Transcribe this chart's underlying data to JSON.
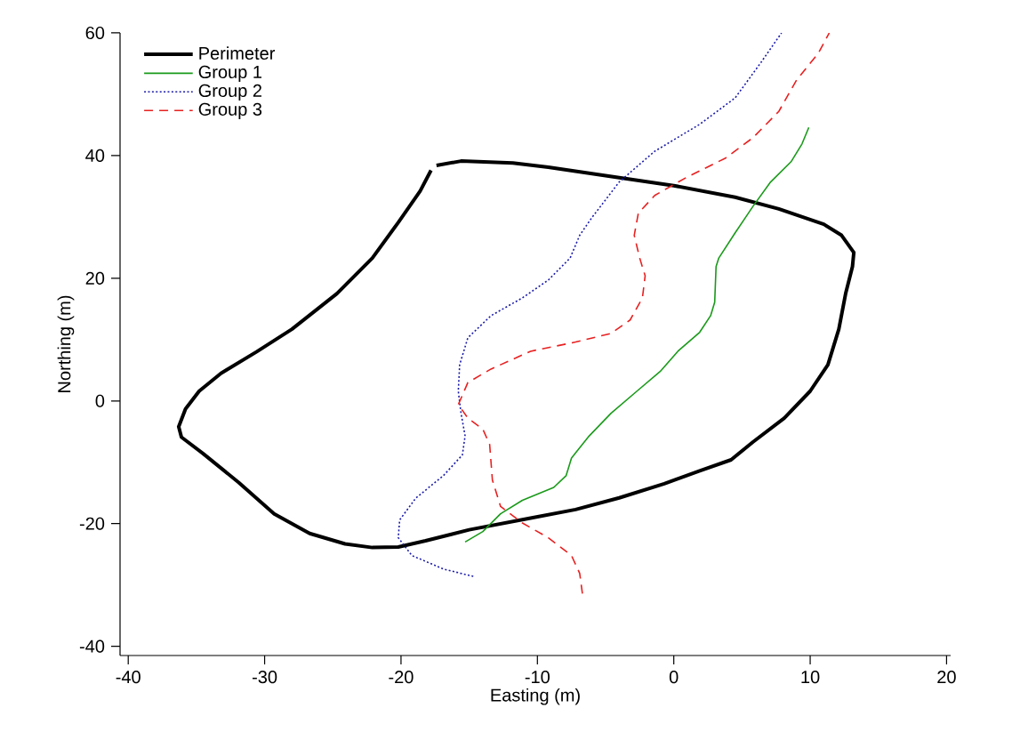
{
  "chart_data": {
    "type": "line",
    "xlabel": "Easting (m)",
    "ylabel": "Northing (m)",
    "xlim": [
      -40.6,
      20.3
    ],
    "ylim": [
      -41.5,
      60
    ],
    "xticks": [
      -40,
      -30,
      -20,
      -10,
      0,
      10,
      20
    ],
    "yticks": [
      -40,
      -20,
      0,
      20,
      40,
      60
    ],
    "grid": false,
    "legend": "top left",
    "marker": "none",
    "series": [
      {
        "name": "Perimeter",
        "color": "#000000",
        "line_style": "solid",
        "x": [
          -17.4,
          -15.6,
          -11.8,
          -9.2,
          -4.0,
          0,
          4.5,
          7.7,
          11.0,
          12.3,
          13.2,
          13.1,
          12.6,
          12.1,
          11.3,
          10,
          8.1,
          5.8,
          4.2,
          1.9,
          -0.7,
          -4.0,
          -7.2,
          -10.5,
          -15,
          -18.2,
          -20.2,
          -22.1,
          -24.1,
          -26.7,
          -29.3,
          -31.9,
          -34.5,
          -36.1,
          -36.3,
          -35.8,
          -34.8,
          -33.2,
          -30.6,
          -28,
          -24.7,
          -22.1,
          -20.2,
          -18.6,
          -17.8
        ],
        "values": [
          38.4,
          39.1,
          38.8,
          38.1,
          36.4,
          35.1,
          33.2,
          31.3,
          28.8,
          27,
          24.2,
          21.9,
          17.5,
          11.7,
          5.9,
          1.6,
          -2.8,
          -6.7,
          -9.6,
          -11.4,
          -13.5,
          -15.8,
          -17.7,
          -19.1,
          -21.0,
          -22.8,
          -23.8,
          -23.9,
          -23.3,
          -21.6,
          -18.4,
          -13.3,
          -8.6,
          -5.9,
          -4.2,
          -1.3,
          1.6,
          4.5,
          8.0,
          11.7,
          17.5,
          23.3,
          29.1,
          34.2,
          37.6
        ]
      },
      {
        "name": "Group 1",
        "color": "#1a9a1a",
        "line_style": "solid",
        "x": [
          -15.3,
          -14,
          -12.7,
          -11.1,
          -8.8,
          -7.9,
          -7.5,
          -6.2,
          -4.6,
          -2.7,
          -1.0,
          0.3,
          1.9,
          2.7,
          3.0,
          3.1,
          3.3,
          4.5,
          5.8,
          7.1,
          8.6,
          9.4,
          9.9
        ],
        "values": [
          -23.0,
          -21.3,
          -18.4,
          -16.2,
          -14.1,
          -12.2,
          -9.3,
          -5.7,
          -2.0,
          1.6,
          4.8,
          8.1,
          11.2,
          13.9,
          16.1,
          21.9,
          23.3,
          27.4,
          31.7,
          35.7,
          39,
          41.9,
          44.6
        ]
      },
      {
        "name": "Group 2",
        "color": "#1a1aaa",
        "line_style": "dotted",
        "x": [
          -14.7,
          -16.9,
          -19.2,
          -20.2,
          -20.1,
          -18.9,
          -16.9,
          -15.5,
          -15.3,
          -15.6,
          -15.8,
          -15.7,
          -15.1,
          -13.4,
          -11.1,
          -9.2,
          -7.6,
          -6.9,
          -6.0,
          -4.0,
          -1.4,
          1.9,
          4.5,
          6.4,
          7.9
        ],
        "values": [
          -28.6,
          -27.4,
          -25.2,
          -22.3,
          -19.4,
          -15.8,
          -12.2,
          -8.8,
          -5.7,
          -2.0,
          1.6,
          5.9,
          10.3,
          13.9,
          16.8,
          19.7,
          23.3,
          27.0,
          29.9,
          35.7,
          40.7,
          45.1,
          49.4,
          55.2,
          60
        ]
      },
      {
        "name": "Group 3",
        "color": "#e82020",
        "line_style": "dashed",
        "x": [
          -6.7,
          -6.9,
          -7.5,
          -9.2,
          -11.1,
          -12.7,
          -13.3,
          -13.5,
          -14.0,
          -15.1,
          -15.8,
          -15.1,
          -13.4,
          -10.5,
          -7.2,
          -4.6,
          -3.2,
          -2.3,
          -2.1,
          -2.5,
          -2.9,
          -2.6,
          -1.4,
          0.9,
          3.8,
          5.8,
          7.7,
          9.0,
          10.6,
          11.4
        ],
        "values": [
          -31.4,
          -28.1,
          -25.2,
          -22.3,
          -19.9,
          -17.2,
          -12.9,
          -7.1,
          -4.6,
          -2.8,
          -0.6,
          3.0,
          5.2,
          8.1,
          9.6,
          11.0,
          13.2,
          16.8,
          20.4,
          23.3,
          27.0,
          30.6,
          33.5,
          36.4,
          39.6,
          42.9,
          47.2,
          52.3,
          56.7,
          60
        ]
      }
    ]
  }
}
